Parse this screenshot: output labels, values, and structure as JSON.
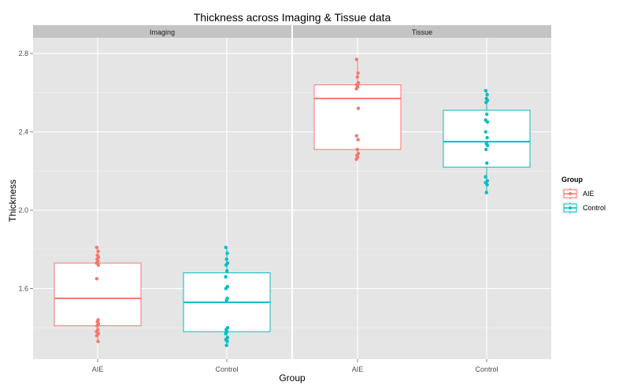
{
  "chart_data": {
    "type": "boxplot",
    "title": "Thickness across Imaging & Tissue data",
    "xlabel": "Group",
    "ylabel": "Thickness",
    "ylim": [
      1.24,
      2.88
    ],
    "yticks": [
      1.6,
      2.0,
      2.4,
      2.8
    ],
    "categories": [
      "AIE",
      "Control"
    ],
    "grid": true,
    "legend": {
      "title": "Group",
      "position": "right",
      "entries": [
        "AIE",
        "Control"
      ]
    },
    "colors": {
      "AIE": "#f8766d",
      "Control": "#00bfc4"
    },
    "facets": [
      {
        "name": "Imaging",
        "boxes": [
          {
            "group": "AIE",
            "q1": 1.41,
            "median": 1.55,
            "q3": 1.73,
            "points": [
              1.81,
              1.79,
              1.77,
              1.76,
              1.75,
              1.74,
              1.73,
              1.72,
              1.65,
              1.44,
              1.43,
              1.42,
              1.41,
              1.39,
              1.38,
              1.37,
              1.36,
              1.33
            ]
          },
          {
            "group": "Control",
            "q1": 1.38,
            "median": 1.53,
            "q3": 1.68,
            "points": [
              1.81,
              1.78,
              1.75,
              1.73,
              1.72,
              1.69,
              1.66,
              1.61,
              1.6,
              1.55,
              1.54,
              1.4,
              1.39,
              1.38,
              1.37,
              1.35,
              1.34,
              1.33,
              1.31
            ]
          }
        ]
      },
      {
        "name": "Tissue",
        "boxes": [
          {
            "group": "AIE",
            "q1": 2.31,
            "median": 2.57,
            "q3": 2.64,
            "points": [
              2.77,
              2.7,
              2.68,
              2.65,
              2.64,
              2.63,
              2.62,
              2.52,
              2.38,
              2.36,
              2.31,
              2.29,
              2.28,
              2.27,
              2.26
            ]
          },
          {
            "group": "Control",
            "q1": 2.22,
            "median": 2.35,
            "q3": 2.51,
            "points": [
              2.61,
              2.59,
              2.57,
              2.56,
              2.55,
              2.49,
              2.46,
              2.45,
              2.4,
              2.37,
              2.34,
              2.33,
              2.31,
              2.24,
              2.17,
              2.15,
              2.14,
              2.13,
              2.09
            ]
          }
        ]
      }
    ]
  }
}
